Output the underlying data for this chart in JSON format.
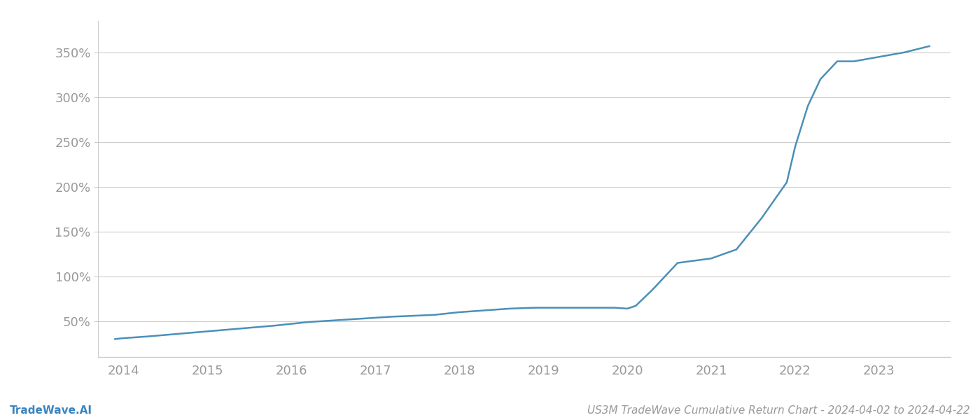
{
  "title": "US3M TradeWave Cumulative Return Chart - 2024-04-02 to 2024-04-22",
  "watermark": "TradeWave.AI",
  "line_color": "#4a90b8",
  "background_color": "#ffffff",
  "grid_color": "#cccccc",
  "x_values": [
    2013.9,
    2014.0,
    2014.3,
    2014.8,
    2015.3,
    2015.8,
    2016.2,
    2016.7,
    2017.2,
    2017.7,
    2018.0,
    2018.3,
    2018.6,
    2018.9,
    2019.0,
    2019.2,
    2019.5,
    2019.7,
    2019.85,
    2020.0,
    2020.1,
    2020.3,
    2020.6,
    2021.0,
    2021.3,
    2021.6,
    2021.9,
    2022.0,
    2022.15,
    2022.3,
    2022.5,
    2022.7,
    2023.0,
    2023.3,
    2023.6
  ],
  "y_values": [
    30,
    31,
    33,
    37,
    41,
    45,
    49,
    52,
    55,
    57,
    60,
    62,
    64,
    65,
    65,
    65,
    65,
    65,
    65,
    64,
    67,
    85,
    115,
    120,
    130,
    165,
    205,
    245,
    290,
    320,
    340,
    340,
    345,
    350,
    357
  ],
  "yticks": [
    50,
    100,
    150,
    200,
    250,
    300,
    350
  ],
  "ylim": [
    10,
    385
  ],
  "xlim": [
    2013.7,
    2023.85
  ],
  "xticks": [
    2014,
    2015,
    2016,
    2017,
    2018,
    2019,
    2020,
    2021,
    2022,
    2023
  ],
  "line_width": 1.8,
  "tick_label_color": "#999999",
  "title_color": "#999999",
  "watermark_color": "#3a85c0",
  "spine_color": "#cccccc",
  "font_size_ticks": 13,
  "font_size_footer": 11
}
